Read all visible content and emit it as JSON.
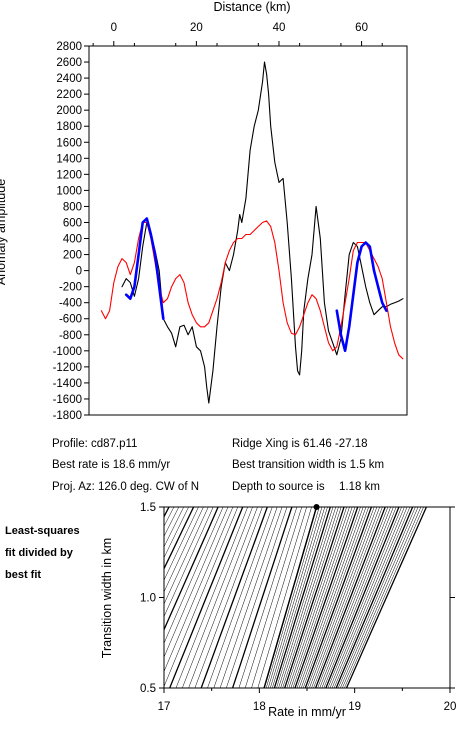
{
  "chart_data": [
    {
      "type": "line",
      "title": "",
      "xlabel": "Distance (km)",
      "ylabel": "Anomaly amplitude",
      "xlim": [
        -6,
        71
      ],
      "ylim": [
        -1800,
        2800
      ],
      "x_ticks": [
        "0",
        "20",
        "40",
        "60"
      ],
      "y_ticks": [
        "2800",
        "2600",
        "2400",
        "2200",
        "2000",
        "1800",
        "1600",
        "1400",
        "1200",
        "1000",
        "800",
        "600",
        "400",
        "200",
        "0",
        "-200",
        "-400",
        "-600",
        "-800",
        "-1000",
        "-1200",
        "-1400",
        "-1600",
        "-1800"
      ],
      "colors": {
        "observed": "#000000",
        "model": "#ff0000",
        "fit_window": "#0000ff"
      },
      "series": [
        {
          "name": "",
          "color": "#000000",
          "x": [
            2,
            3,
            4,
            5,
            6,
            7,
            8,
            9,
            10,
            11,
            12,
            13,
            14,
            15,
            16,
            17,
            18,
            19,
            20,
            21,
            22,
            22.5,
            23,
            24,
            25,
            26,
            27,
            28,
            29,
            30,
            30.5,
            31,
            32,
            33,
            34,
            35,
            36,
            36.5,
            37,
            37.5,
            38,
            39,
            40,
            41,
            42,
            43,
            44,
            44.5,
            45,
            45.5,
            46,
            47,
            48,
            49,
            50,
            51,
            52,
            53,
            54,
            55,
            56,
            57,
            58,
            59,
            60,
            61,
            62,
            63,
            64,
            65,
            66,
            67,
            68,
            69,
            70
          ],
          "y": [
            -200,
            -100,
            -150,
            -320,
            -100,
            300,
            600,
            450,
            250,
            0,
            -600,
            -700,
            -780,
            -950,
            -700,
            -680,
            -800,
            -700,
            -950,
            -1000,
            -1200,
            -1450,
            -1650,
            -1250,
            -700,
            -200,
            100,
            0,
            200,
            500,
            700,
            600,
            900,
            1500,
            1800,
            2000,
            2350,
            2600,
            2450,
            2200,
            1800,
            1350,
            1100,
            1150,
            600,
            -100,
            -950,
            -1250,
            -1300,
            -1000,
            -500,
            -100,
            200,
            800,
            400,
            -400,
            -750,
            -900,
            -1050,
            -850,
            -300,
            200,
            350,
            300,
            50,
            -200,
            -400,
            -550,
            -500,
            -450,
            -450,
            -420,
            -400,
            -380,
            -350
          ]
        },
        {
          "name": "",
          "color": "#ff0000",
          "x": [
            -3,
            -2,
            -1,
            0,
            1,
            2,
            3,
            4,
            5,
            6,
            7,
            8,
            9,
            10,
            11,
            12,
            13,
            14,
            15,
            16,
            17,
            18,
            19,
            20,
            21,
            22,
            23,
            24,
            25,
            26,
            27,
            28,
            29,
            30,
            31,
            32,
            33,
            34,
            35,
            36,
            37,
            38,
            39,
            40,
            41,
            42,
            43,
            44,
            45,
            46,
            47,
            48,
            49,
            50,
            51,
            52,
            53,
            54,
            55,
            56,
            57,
            58,
            59,
            60,
            61,
            62,
            63,
            64,
            65,
            66,
            67,
            68,
            69,
            70
          ],
          "y": [
            -500,
            -600,
            -500,
            -150,
            50,
            150,
            100,
            -50,
            100,
            400,
            600,
            600,
            400,
            100,
            -200,
            -400,
            -350,
            -200,
            -100,
            -50,
            -150,
            -400,
            -550,
            -650,
            -700,
            -700,
            -650,
            -500,
            -350,
            -150,
            100,
            250,
            350,
            400,
            400,
            450,
            450,
            500,
            550,
            600,
            620,
            550,
            350,
            0,
            -400,
            -650,
            -780,
            -800,
            -700,
            -550,
            -400,
            -300,
            -350,
            -500,
            -700,
            -900,
            -1000,
            -950,
            -700,
            -400,
            -100,
            250,
            350,
            350,
            350,
            250,
            150,
            50,
            -100,
            -400,
            -700,
            -900,
            -1050,
            -1100
          ]
        },
        {
          "name": "",
          "color": "#0000ff",
          "x": [
            3,
            4,
            5,
            6,
            7,
            8,
            9,
            10,
            11,
            12
          ],
          "y": [
            -300,
            -350,
            -200,
            200,
            600,
            650,
            450,
            200,
            -200,
            -600
          ]
        },
        {
          "name": "",
          "color": "#0000ff",
          "x": [
            54,
            55,
            56,
            57,
            58,
            59,
            60,
            61,
            62,
            63,
            64,
            65,
            66
          ],
          "y": [
            -500,
            -800,
            -1000,
            -700,
            -300,
            100,
            300,
            350,
            300,
            0,
            -200,
            -400,
            -500
          ]
        }
      ]
    },
    {
      "type": "contour",
      "title": "",
      "xlabel": "Rate in mm/yr",
      "ylabel": "Transition width in km",
      "xlim": [
        17,
        20
      ],
      "ylim": [
        0.5,
        1.5
      ],
      "x_ticks": [
        "17",
        "18",
        "19",
        "20"
      ],
      "y_ticks": [
        "1.5",
        "1.0",
        "0.5"
      ],
      "best_fit": {
        "rate": 18.6,
        "width": 1.5
      },
      "levels": [
        0,
        1,
        2,
        3,
        4,
        5,
        6,
        7,
        8,
        9,
        10,
        11,
        12,
        13,
        14,
        15,
        16,
        17,
        18,
        19,
        20,
        21,
        22,
        23,
        24,
        25,
        26,
        27,
        28,
        29,
        30,
        31,
        32,
        33,
        34,
        35,
        36,
        37,
        38,
        39,
        40
      ],
      "bold_every": 5
    }
  ],
  "info": {
    "profile": "Profile: cd87.p11",
    "ridge_xing": "Ridge Xing is 61.46 -27.18",
    "best_rate": "Best rate is 18.6 mm/yr",
    "best_width": "Best transition width is 1.5 km",
    "proj_az": "Proj. Az: 126.0 deg. CW of N",
    "depth_label": "Depth to source is",
    "depth_value": "1.18 km"
  },
  "side_note": {
    "line1": "Least-squares",
    "line2": "fit divided by",
    "line3": "best fit"
  }
}
